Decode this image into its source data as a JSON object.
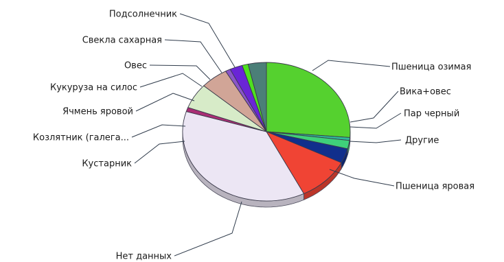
{
  "chart_data": {
    "type": "pie",
    "title": "",
    "legend": "none",
    "style": "3d-tilted",
    "slices": [
      {
        "label": "Пшеница озимая",
        "value": 27.0,
        "color": "#55d12f"
      },
      {
        "label": "Вика+овес",
        "value": 0.7,
        "color": "#2fb89a"
      },
      {
        "label": "Пар черный",
        "value": 2.0,
        "color": "#3fd07a"
      },
      {
        "label": "Другие",
        "value": 3.5,
        "color": "#112f8c"
      },
      {
        "label": "Пшеница яровая",
        "value": 10.5,
        "color": "#f04434"
      },
      {
        "label": "Нет данных",
        "value": 38.0,
        "color": "#ece6f4"
      },
      {
        "label": "Кустарник",
        "value": 1.0,
        "color": "#a92e74"
      },
      {
        "label": "Козлятник (галега...",
        "value": 6.0,
        "color": "#d7ebc8"
      },
      {
        "label": "Ячмень яровой",
        "value": 5.5,
        "color": "#d1a597"
      },
      {
        "label": "Кукуруза на силос",
        "value": 1.0,
        "color": "#8a55c8"
      },
      {
        "label": "Овес",
        "value": 2.5,
        "color": "#6a25d6"
      },
      {
        "label": "Свекла сахарная",
        "value": 1.2,
        "color": "#4ee11e"
      },
      {
        "label": "Подсолнечник",
        "value": 3.6,
        "color": "#4b7f78"
      }
    ]
  }
}
